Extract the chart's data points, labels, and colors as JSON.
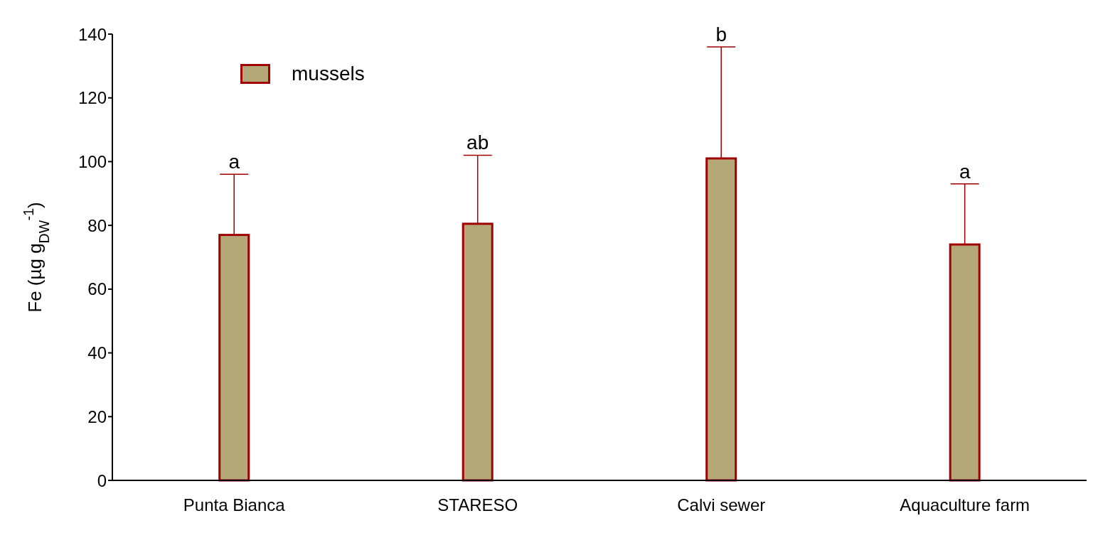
{
  "chart_data": {
    "type": "bar",
    "ylabel": "Fe (µg g$_{DW}$$^{-1}$)",
    "categories": [
      "Punta Bianca",
      "STARESO",
      "Calvi sewer",
      "Aquaculture farm"
    ],
    "series": [
      {
        "name": "mussels",
        "color": "#b5a878",
        "values": [
          77,
          80.5,
          101,
          74
        ],
        "errors": [
          [
            77,
            96
          ],
          [
            80.5,
            102
          ],
          [
            101,
            136
          ],
          [
            74,
            93
          ]
        ]
      }
    ],
    "ylim": [
      0,
      140
    ],
    "yticks": [
      0,
      20,
      40,
      60,
      80,
      100,
      120,
      140
    ],
    "grid": false,
    "legend": "top left",
    "annotations": [
      {
        "text": "a",
        "x": "Punta Bianca",
        "y": 96
      },
      {
        "text": "ab",
        "x": "STARESO",
        "y": 102
      },
      {
        "text": "b",
        "x": "Calvi sewer",
        "y": 136
      },
      {
        "text": "a",
        "x": "Aquaculture farm",
        "y": 93
      }
    ]
  }
}
